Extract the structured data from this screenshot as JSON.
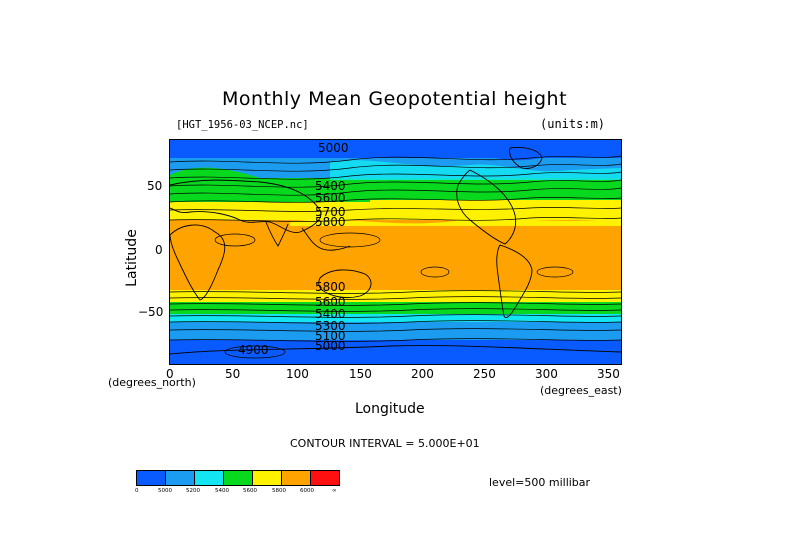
{
  "title": "Monthly Mean Geopotential height",
  "file_label": "[HGT_1956-03_NCEP.nc]",
  "units_label": "(units:m)",
  "y_axis": {
    "label": "Latitude",
    "units": "(degrees_north)",
    "ticks": [
      "50",
      "0",
      "−50"
    ]
  },
  "x_axis": {
    "label": "Longitude",
    "units": "(degrees_east)",
    "ticks": [
      "0",
      "50",
      "100",
      "150",
      "200",
      "250",
      "300",
      "350"
    ]
  },
  "contour_interval": "CONTOUR INTERVAL = 5.000E+01",
  "level": "level=500 millibar",
  "map_labels": [
    "5000",
    "5400",
    "5600",
    "5700",
    "5800",
    "5800",
    "5600",
    "5400",
    "5300",
    "5100",
    "5000",
    "4900"
  ],
  "colorbar": {
    "labels": [
      "0",
      "5000",
      "5200",
      "5400",
      "5600",
      "5800",
      "6000",
      "∞"
    ],
    "colors": [
      "#0a5bff",
      "#1c9cf0",
      "#13e6f2",
      "#08d91e",
      "#fff200",
      "#ffa300",
      "#ff1010"
    ]
  },
  "band_colors": {
    "blue": "#0a5bff",
    "lightblue": "#1c9cf0",
    "cyan": "#13e6f2",
    "green": "#08d91e",
    "yellow": "#fff200",
    "orange": "#ffa300"
  }
}
